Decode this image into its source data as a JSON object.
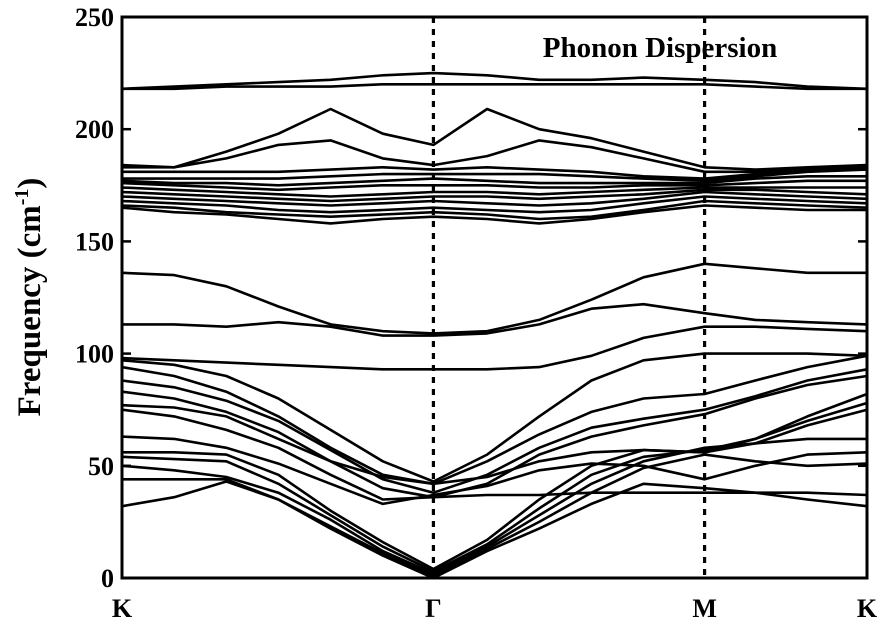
{
  "chart_data": {
    "type": "line",
    "title": "Phonon Dispersion",
    "ylabel_main": "Frequency (cm",
    "ylabel_sup": "-1",
    "ylabel_close": ")",
    "xlabel": "",
    "xlim": [
      0,
      1
    ],
    "ylim": [
      0,
      250
    ],
    "y_ticks": [
      0,
      50,
      100,
      150,
      200,
      250
    ],
    "y_tick_labels": [
      "0",
      "50",
      "100",
      "150",
      "200",
      "250"
    ],
    "high_symmetry_points": [
      {
        "label": "K",
        "x": 0.0,
        "divider": false
      },
      {
        "label": "Γ",
        "x": 0.418,
        "divider": true
      },
      {
        "label": "M",
        "x": 0.782,
        "divider": true
      },
      {
        "label": "K",
        "x": 1.0,
        "divider": false
      }
    ],
    "x": [
      0,
      0.07,
      0.14,
      0.21,
      0.28,
      0.35,
      0.418,
      0.49,
      0.56,
      0.63,
      0.7,
      0.782,
      0.85,
      0.92,
      1.0
    ],
    "series": [
      {
        "values": [
          32,
          36,
          43,
          35,
          22,
          10,
          0,
          12,
          22,
          33,
          42,
          40,
          38,
          35,
          32
        ]
      },
      {
        "values": [
          44,
          44,
          44,
          35,
          23,
          11,
          1,
          13,
          25,
          38,
          49,
          55,
          52,
          50,
          51
        ]
      },
      {
        "values": [
          50,
          48,
          45,
          38,
          26,
          12,
          2,
          14,
          28,
          42,
          52,
          58,
          60,
          68,
          75
        ]
      },
      {
        "values": [
          54,
          53,
          52,
          42,
          28,
          14,
          3,
          15,
          31,
          46,
          54,
          57,
          62,
          70,
          78
        ]
      },
      {
        "values": [
          56,
          56,
          55,
          46,
          30,
          16,
          4,
          17,
          35,
          50,
          57,
          56,
          62,
          72,
          82
        ]
      },
      {
        "values": [
          63,
          62,
          58,
          51,
          42,
          33,
          37,
          41,
          48,
          51,
          50,
          44,
          50,
          55,
          56
        ]
      },
      {
        "values": [
          75,
          72,
          66,
          58,
          46,
          35,
          36,
          37,
          37,
          38,
          38,
          38,
          38,
          38,
          37
        ]
      },
      {
        "values": [
          77,
          76,
          72,
          62,
          52,
          45,
          42,
          45,
          52,
          56,
          57,
          56,
          60,
          62,
          62
        ]
      },
      {
        "values": [
          83,
          80,
          74,
          65,
          52,
          40,
          36,
          42,
          55,
          63,
          68,
          73,
          80,
          86,
          90
        ]
      },
      {
        "values": [
          88,
          85,
          79,
          70,
          57,
          44,
          38,
          46,
          58,
          67,
          71,
          75,
          81,
          88,
          93
        ]
      },
      {
        "values": [
          94,
          90,
          83,
          72,
          58,
          46,
          42,
          52,
          64,
          74,
          80,
          82,
          88,
          94,
          99
        ]
      },
      {
        "values": [
          97,
          95,
          90,
          80,
          66,
          52,
          43,
          55,
          72,
          88,
          97,
          100,
          100,
          100,
          99
        ]
      },
      {
        "values": [
          98,
          97,
          96,
          95,
          94,
          93,
          93,
          93,
          94,
          99,
          107,
          112,
          112,
          111,
          110
        ]
      },
      {
        "values": [
          113,
          113,
          112,
          114,
          112,
          108,
          108,
          109,
          113,
          120,
          122,
          118,
          115,
          114,
          113
        ]
      },
      {
        "values": [
          136,
          135,
          130,
          121,
          113,
          110,
          109,
          110,
          115,
          124,
          134,
          140,
          138,
          136,
          136
        ]
      },
      {
        "values": [
          165,
          163,
          162,
          160,
          158,
          160,
          161,
          160,
          158,
          160,
          163,
          166,
          165,
          164,
          164
        ]
      },
      {
        "values": [
          166,
          165,
          163,
          162,
          161,
          162,
          163,
          162,
          160,
          161,
          164,
          168,
          167,
          166,
          165
        ]
      },
      {
        "values": [
          168,
          167,
          166,
          164,
          163,
          164,
          165,
          164,
          163,
          164,
          167,
          170,
          169,
          168,
          167
        ]
      },
      {
        "values": [
          170,
          169,
          168,
          167,
          166,
          167,
          168,
          167,
          166,
          167,
          169,
          172,
          171,
          170,
          169
        ]
      },
      {
        "values": [
          172,
          171,
          170,
          169,
          168,
          169,
          170,
          170,
          169,
          170,
          171,
          173,
          173,
          172,
          171
        ]
      },
      {
        "values": [
          174,
          173,
          172,
          171,
          170,
          171,
          172,
          172,
          171,
          172,
          173,
          174,
          174,
          174,
          174
        ]
      },
      {
        "values": [
          176,
          175,
          174,
          173,
          174,
          175,
          175,
          175,
          174,
          174,
          175,
          175,
          176,
          177,
          177
        ]
      },
      {
        "values": [
          177,
          176,
          176,
          175,
          176,
          177,
          178,
          177,
          176,
          176,
          176,
          176,
          178,
          179,
          179
        ]
      },
      {
        "values": [
          178,
          178,
          178,
          178,
          179,
          180,
          180,
          180,
          180,
          179,
          178,
          177,
          179,
          181,
          182
        ]
      },
      {
        "values": [
          181,
          181,
          181,
          181,
          182,
          183,
          182,
          183,
          182,
          181,
          179,
          178,
          180,
          182,
          184
        ]
      },
      {
        "values": [
          183,
          183,
          187,
          193,
          195,
          187,
          184,
          188,
          195,
          192,
          187,
          181,
          181,
          182,
          183
        ]
      },
      {
        "values": [
          184,
          183,
          190,
          198,
          209,
          198,
          193,
          209,
          200,
          196,
          190,
          183,
          182,
          183,
          184
        ]
      },
      {
        "values": [
          218,
          218,
          219,
          219,
          219,
          220,
          220,
          220,
          220,
          220,
          220,
          220,
          219,
          218,
          218
        ]
      },
      {
        "values": [
          218,
          219,
          220,
          221,
          222,
          224,
          225,
          224,
          222,
          222,
          223,
          222,
          221,
          219,
          218
        ]
      }
    ]
  }
}
